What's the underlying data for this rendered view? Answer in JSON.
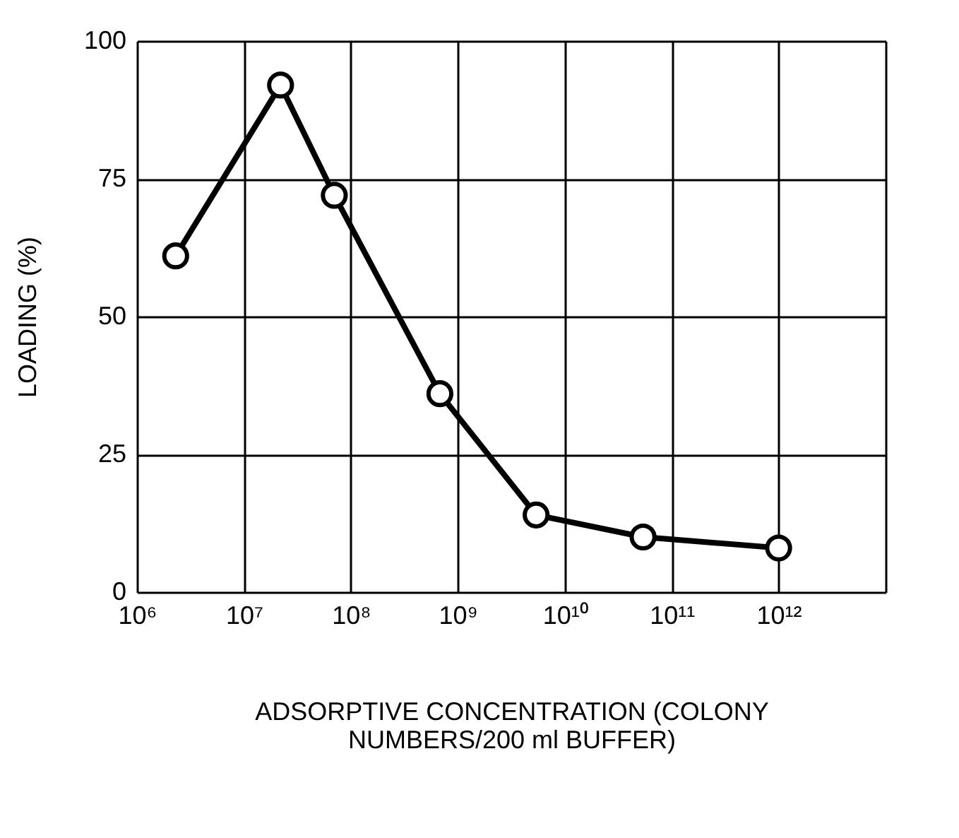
{
  "chart_data": {
    "type": "line",
    "xlabel": "ADSORPTIVE CONCENTRATION (COLONY\nNUMBERS/200 ml BUFFER)",
    "ylabel": "LOADING (%)",
    "x": [
      2300000.0,
      22000000.0,
      70000000.0,
      680000000.0,
      5400000000.0,
      54000000000.0,
      1000000000000.0
    ],
    "series": [
      {
        "color": "#000000",
        "values": [
          61,
          92,
          72,
          36,
          14,
          10,
          8
        ]
      }
    ],
    "log": "x",
    "xlim": [
      1000000.0,
      10000000000000.0
    ],
    "xticks": [
      {
        "value": 1000000.0,
        "label": "10⁶"
      },
      {
        "value": 10000000.0,
        "label": "10⁷"
      },
      {
        "value": 100000000.0,
        "label": "10⁸"
      },
      {
        "value": 1000000000.0,
        "label": "10⁹"
      },
      {
        "value": 10000000000.0,
        "label": "10¹⁰"
      },
      {
        "value": 100000000000.0,
        "label": "10¹¹"
      },
      {
        "value": 1000000000000.0,
        "label": "10¹²"
      },
      {
        "value": 10000000000000.0,
        "label": null
      }
    ],
    "ylim": [
      0,
      100
    ],
    "yticks": [
      0,
      25,
      50,
      75,
      100
    ],
    "grid": true,
    "marker": "circle",
    "line_style": "solid"
  }
}
